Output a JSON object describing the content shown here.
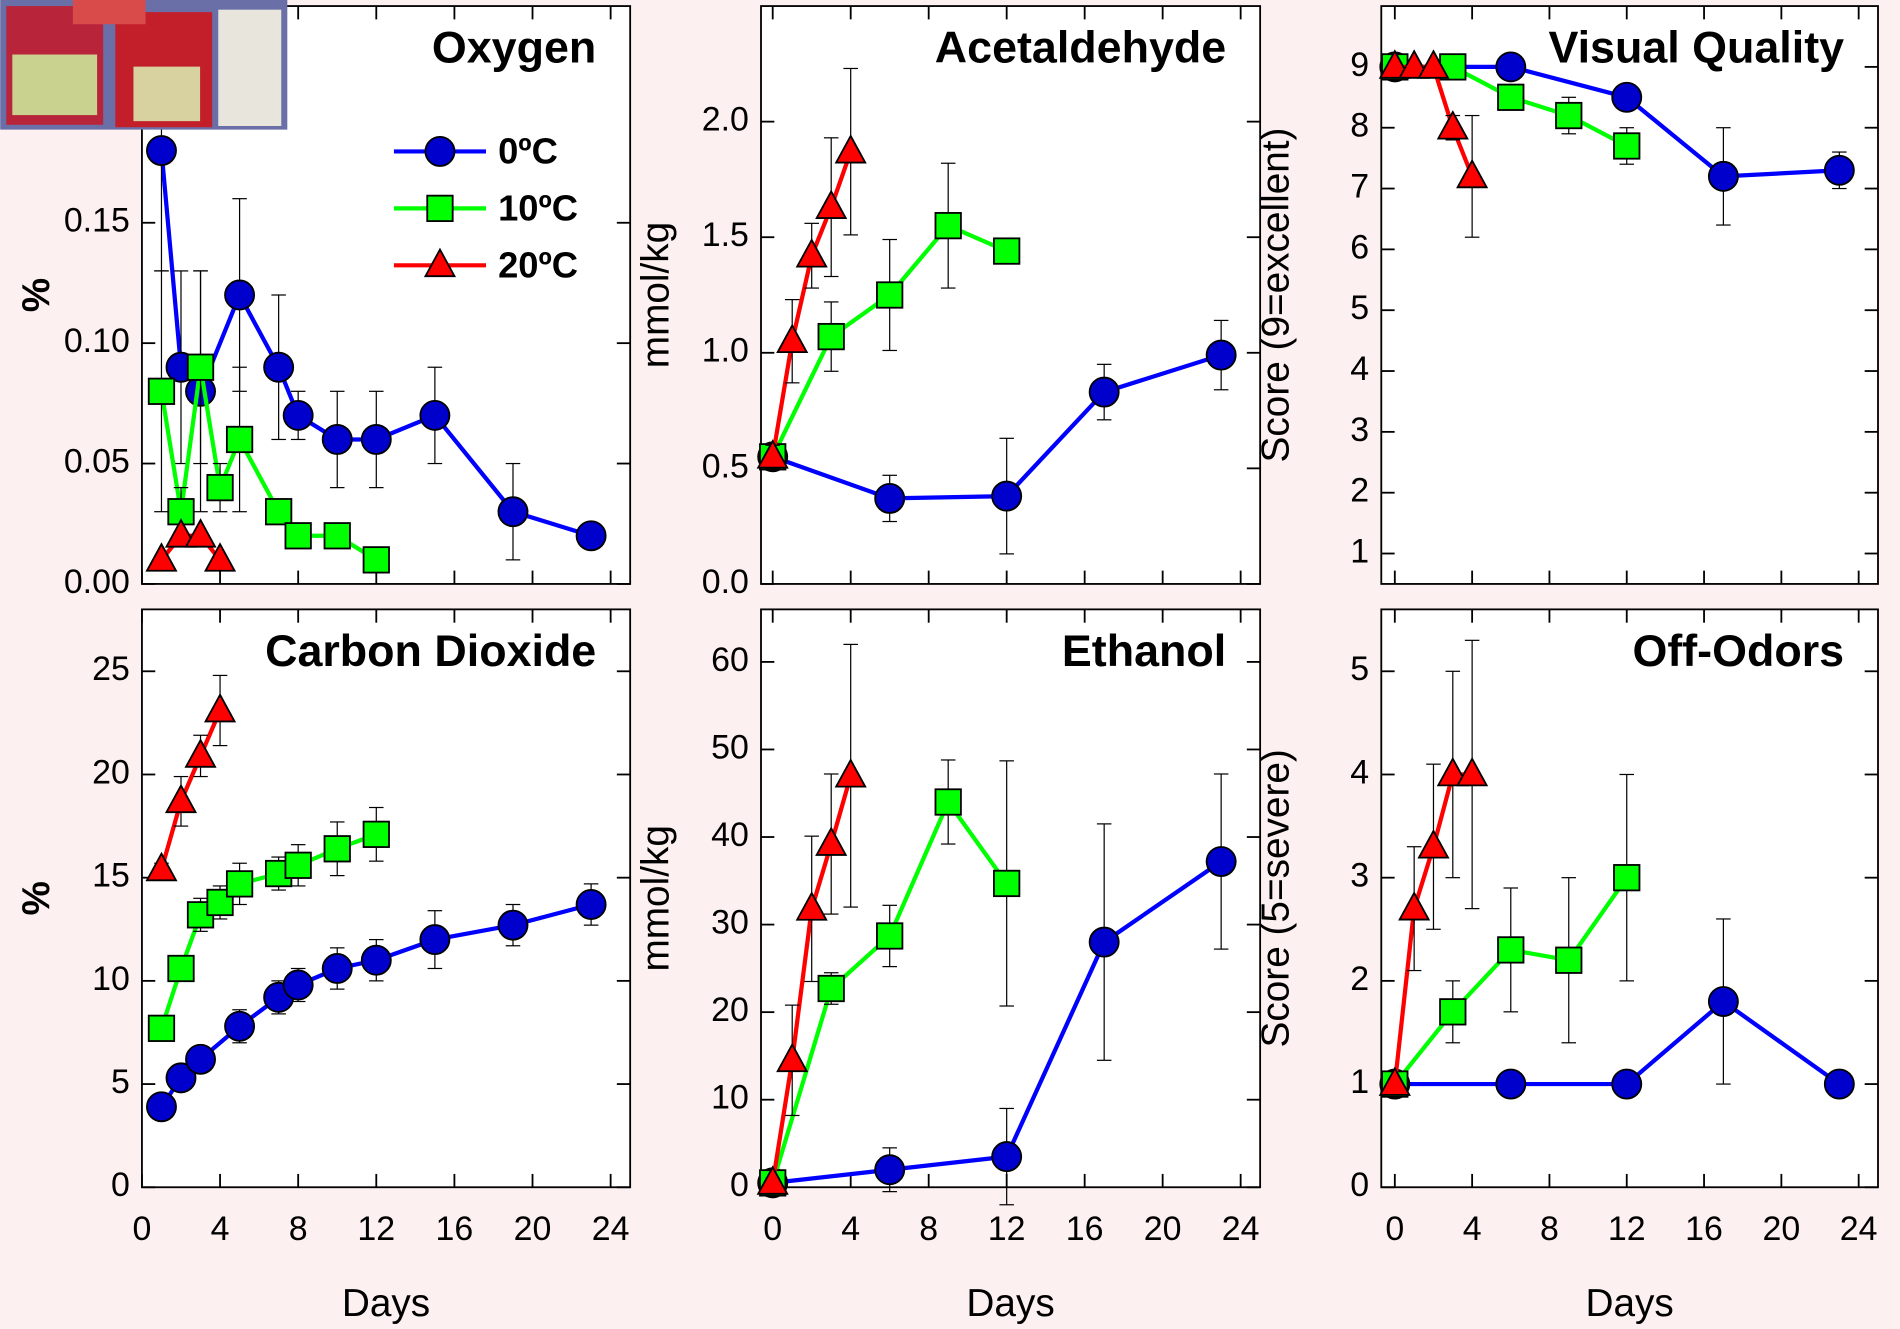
{
  "chart_data": [
    {
      "type": "line",
      "title": "Oxygen",
      "ylabel": "%",
      "legend": true,
      "legend_position": "upper right",
      "show_xtick_labels": false,
      "xlim": [
        0,
        25
      ],
      "xticks": [
        0,
        4,
        8,
        12,
        16,
        20,
        24
      ],
      "ylim": [
        0,
        0.24
      ],
      "yticks": [
        {
          "value": 0,
          "label": "0.00"
        },
        0.05,
        {
          "value": 0.1,
          "label": "0.10"
        },
        0.15
      ],
      "series": [
        {
          "name": "0ºC",
          "color": "#0000ff",
          "fill": "#0000cc",
          "marker": "circle",
          "x": [
            1,
            2,
            3,
            5,
            7,
            8,
            10,
            12,
            15,
            19,
            23
          ],
          "values": [
            0.18,
            0.09,
            0.08,
            0.12,
            0.09,
            0.07,
            0.06,
            0.06,
            0.07,
            0.03,
            0.02
          ],
          "errors": [
            0.05,
            0.04,
            0.05,
            0.04,
            0.03,
            0.01,
            0.02,
            0.02,
            0.02,
            0.02,
            0
          ]
        },
        {
          "name": "10ºC",
          "color": "#00ff00",
          "fill": "#00ff00",
          "marker": "square",
          "x": [
            1,
            2,
            3,
            4,
            5,
            7,
            8,
            10,
            12
          ],
          "values": [
            0.08,
            0.03,
            0.09,
            0.04,
            0.06,
            0.03,
            0.02,
            0.02,
            0.01
          ],
          "errors": [
            0.05,
            0.01,
            0.04,
            0.01,
            0.03,
            0,
            0,
            0,
            0
          ]
        },
        {
          "name": "20ºC",
          "color": "#ff0000",
          "fill": "#ff0000",
          "marker": "triangle",
          "x": [
            1,
            2,
            3,
            4
          ],
          "values": [
            0.01,
            0.02,
            0.02,
            0.01
          ],
          "errors": [
            0,
            0,
            0,
            0
          ]
        }
      ]
    },
    {
      "type": "line",
      "title": "Acetaldehyde",
      "ylabel": "mmol/kg",
      "show_xtick_labels": false,
      "xlim": [
        -0.6,
        25
      ],
      "xticks": [
        0,
        4,
        8,
        12,
        16,
        20,
        24
      ],
      "ylim": [
        0,
        2.5
      ],
      "yticks": [
        {
          "value": 0,
          "label": "0.0"
        },
        0.5,
        {
          "value": 1,
          "label": "1.0"
        },
        1.5,
        {
          "value": 2,
          "label": "2.0"
        }
      ],
      "series": [
        {
          "color": "#0000ff",
          "fill": "#0000cc",
          "marker": "circle",
          "x": [
            0,
            6,
            12,
            17,
            23
          ],
          "values": [
            0.55,
            0.37,
            0.38,
            0.83,
            0.99
          ],
          "errors": [
            0.05,
            0.1,
            0.25,
            0.12,
            0.15
          ]
        },
        {
          "color": "#00ff00",
          "fill": "#00ff00",
          "marker": "square",
          "x": [
            0,
            3,
            6,
            9,
            12
          ],
          "values": [
            0.55,
            1.07,
            1.25,
            1.55,
            1.44
          ],
          "errors": [
            0.05,
            0.15,
            0.24,
            0.27,
            0.03
          ]
        },
        {
          "color": "#ff0000",
          "fill": "#ff0000",
          "marker": "triangle",
          "x": [
            0,
            1,
            2,
            3,
            4
          ],
          "values": [
            0.55,
            1.05,
            1.42,
            1.63,
            1.87
          ],
          "errors": [
            0.05,
            0.18,
            0.14,
            0.3,
            0.36
          ]
        }
      ]
    },
    {
      "type": "line",
      "title": "Visual Quality",
      "ylabel": "Score (9=excellent)",
      "show_xtick_labels": false,
      "xlim": [
        -0.7,
        25
      ],
      "xticks": [
        0,
        4,
        8,
        12,
        16,
        20,
        24
      ],
      "ylim": [
        0.5,
        10
      ],
      "yticks": [
        1,
        2,
        3,
        4,
        5,
        6,
        7,
        8,
        9
      ],
      "series": [
        {
          "color": "#0000ff",
          "fill": "#0000cc",
          "marker": "circle",
          "x": [
            0,
            6,
            12,
            17,
            23
          ],
          "values": [
            9,
            9,
            8.5,
            7.2,
            7.3
          ],
          "errors": [
            0,
            0,
            0.1,
            0.8,
            0.3
          ]
        },
        {
          "color": "#00ff00",
          "fill": "#00ff00",
          "marker": "square",
          "x": [
            0,
            3,
            6,
            9,
            12
          ],
          "values": [
            9,
            9,
            8.5,
            8.2,
            7.7
          ],
          "errors": [
            0,
            0,
            0.1,
            0.3,
            0.3
          ]
        },
        {
          "color": "#ff0000",
          "fill": "#ff0000",
          "marker": "triangle",
          "x": [
            0,
            1,
            2,
            3,
            4
          ],
          "values": [
            9,
            9,
            9,
            8,
            7.2
          ],
          "errors": [
            0,
            0,
            0,
            0.2,
            1
          ]
        }
      ]
    },
    {
      "type": "line",
      "title": "Carbon Dioxide",
      "ylabel": "%",
      "xlabel": "Days",
      "show_xtick_labels": true,
      "xlim": [
        0,
        25
      ],
      "xticks": [
        0,
        4,
        8,
        12,
        16,
        20,
        24
      ],
      "ylim": [
        0,
        28
      ],
      "yticks": [
        0,
        5,
        10,
        15,
        20,
        25
      ],
      "series": [
        {
          "color": "#0000ff",
          "fill": "#0000cc",
          "marker": "circle",
          "x": [
            1,
            2,
            3,
            5,
            7,
            8,
            10,
            12,
            15,
            19,
            23
          ],
          "values": [
            3.9,
            5.3,
            6.2,
            7.8,
            9.2,
            9.8,
            10.6,
            11.0,
            12.0,
            12.7,
            13.7
          ],
          "errors": [
            0.5,
            0.5,
            0.5,
            0.8,
            0.8,
            0.8,
            1,
            1,
            1.4,
            1,
            1
          ]
        },
        {
          "color": "#00ff00",
          "fill": "#00ff00",
          "marker": "square",
          "x": [
            1,
            2,
            3,
            4,
            5,
            7,
            8,
            10,
            12
          ],
          "values": [
            7.7,
            10.6,
            13.2,
            13.8,
            14.7,
            15.2,
            15.6,
            16.4,
            17.1
          ],
          "errors": [
            0.4,
            0.5,
            0.8,
            0.8,
            1,
            0.8,
            1,
            1.3,
            1.3
          ]
        },
        {
          "color": "#ff0000",
          "fill": "#ff0000",
          "marker": "triangle",
          "x": [
            1,
            2,
            3,
            4
          ],
          "values": [
            15.4,
            18.7,
            20.9,
            23.1
          ],
          "errors": [
            0.3,
            1.2,
            1,
            1.7
          ]
        }
      ]
    },
    {
      "type": "line",
      "title": "Ethanol",
      "ylabel": "mmol/kg",
      "xlabel": "Days",
      "show_xtick_labels": true,
      "xlim": [
        -0.6,
        25
      ],
      "xticks": [
        0,
        4,
        8,
        12,
        16,
        20,
        24
      ],
      "ylim": [
        0,
        66
      ],
      "yticks": [
        0,
        10,
        20,
        30,
        40,
        50,
        60
      ],
      "series": [
        {
          "color": "#0000ff",
          "fill": "#0000cc",
          "marker": "circle",
          "x": [
            0,
            6,
            12,
            17,
            23
          ],
          "values": [
            0.5,
            2,
            3.5,
            28,
            37.2
          ],
          "errors": [
            0.5,
            2.5,
            5.5,
            13.5,
            10
          ]
        },
        {
          "color": "#00ff00",
          "fill": "#00ff00",
          "marker": "square",
          "x": [
            0,
            3,
            6,
            9,
            12
          ],
          "values": [
            0.5,
            22.7,
            28.7,
            44,
            34.7
          ],
          "errors": [
            0.5,
            1.8,
            3.5,
            4.8,
            14
          ]
        },
        {
          "color": "#ff0000",
          "fill": "#ff0000",
          "marker": "triangle",
          "x": [
            0,
            1,
            2,
            3,
            4
          ],
          "values": [
            0.5,
            14.5,
            31.8,
            39.2,
            47
          ],
          "errors": [
            0.5,
            6.3,
            8.3,
            8,
            15
          ]
        }
      ]
    },
    {
      "type": "line",
      "title": "Off-Odors",
      "ylabel": "Score (5=severe)",
      "xlabel": "Days",
      "show_xtick_labels": true,
      "xlim": [
        -0.7,
        25
      ],
      "xticks": [
        0,
        4,
        8,
        12,
        16,
        20,
        24
      ],
      "ylim": [
        0,
        5.6
      ],
      "yticks": [
        0,
        1,
        2,
        3,
        4,
        5
      ],
      "series": [
        {
          "color": "#0000ff",
          "fill": "#0000cc",
          "marker": "circle",
          "x": [
            0,
            6,
            12,
            17,
            23
          ],
          "values": [
            1,
            1,
            1,
            1.8,
            1
          ],
          "errors": [
            0,
            0,
            0,
            0.8,
            0
          ]
        },
        {
          "color": "#00ff00",
          "fill": "#00ff00",
          "marker": "square",
          "x": [
            0,
            3,
            6,
            9,
            12
          ],
          "values": [
            1,
            1.7,
            2.3,
            2.2,
            3
          ],
          "errors": [
            0,
            0.3,
            0.6,
            0.8,
            1
          ]
        },
        {
          "color": "#ff0000",
          "fill": "#ff0000",
          "marker": "triangle",
          "x": [
            0,
            1,
            2,
            3,
            4
          ],
          "values": [
            1,
            2.7,
            3.3,
            4,
            4
          ],
          "errors": [
            0,
            0.6,
            0.8,
            1,
            1.3
          ]
        }
      ]
    }
  ]
}
